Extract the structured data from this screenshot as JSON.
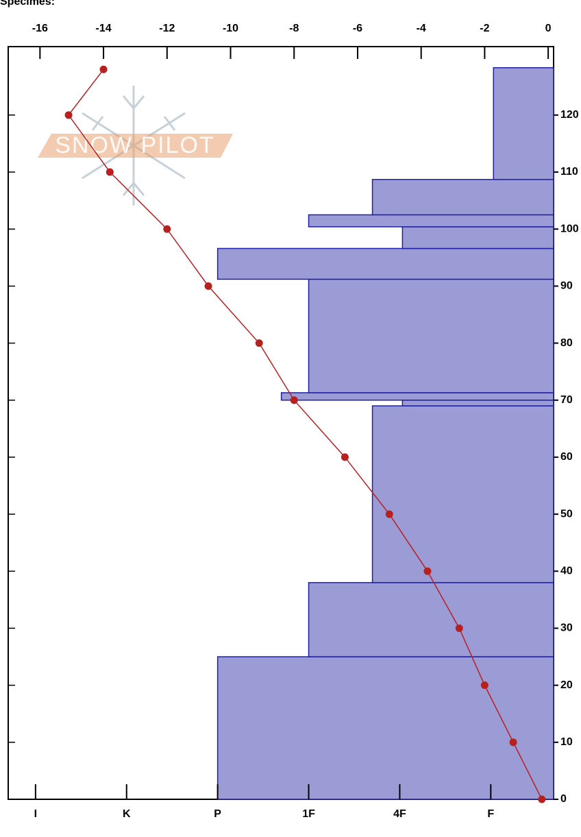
{
  "chart_data": {
    "type": "snow-profile",
    "title": "Specimes:",
    "watermark": "SNOW PILOT",
    "xlim": [
      -17,
      0.17
    ],
    "xticks": [
      -16,
      -14,
      -12,
      -10,
      -8,
      -6,
      -4,
      -2,
      0
    ],
    "ylim": [
      0,
      132
    ],
    "yticks": [
      0,
      10,
      20,
      30,
      40,
      50,
      60,
      70,
      80,
      90,
      100,
      110,
      120
    ],
    "hardness_lim": [
      6.3,
      0.31
    ],
    "hardness_ticks": [
      {
        "value": 6,
        "label": "I"
      },
      {
        "value": 5,
        "label": "K"
      },
      {
        "value": 4,
        "label": "P"
      },
      {
        "value": 3,
        "label": "1F"
      },
      {
        "value": 2,
        "label": "4F"
      },
      {
        "value": 1,
        "label": "F"
      }
    ],
    "layer_color": "#9b9bd6",
    "layer_edge": "#1f1fa3",
    "layers": [
      {
        "bottom": 0,
        "top": 25,
        "hardness": 4
      },
      {
        "bottom": 25,
        "top": 38,
        "hardness": 3
      },
      {
        "bottom": 38,
        "top": 69,
        "hardness": 2.3
      },
      {
        "bottom": 69,
        "top": 70,
        "hardness": 1.97
      },
      {
        "bottom": 70,
        "top": 71.3,
        "hardness": 3.3
      },
      {
        "bottom": 71.3,
        "top": 91.2,
        "hardness": 3
      },
      {
        "bottom": 91.2,
        "top": 96.6,
        "hardness": 4
      },
      {
        "bottom": 96.6,
        "top": 100.4,
        "hardness": 1.97
      },
      {
        "bottom": 100.4,
        "top": 102.5,
        "hardness": 3
      },
      {
        "bottom": 102.5,
        "top": 108.7,
        "hardness": 2.3
      },
      {
        "bottom": 108.7,
        "top": 128.3,
        "hardness": 0.97
      }
    ],
    "temperature": {
      "color": "#b82020",
      "depths": [
        0,
        10,
        20,
        30,
        40,
        50,
        60,
        70,
        80,
        90,
        100,
        110,
        120,
        128
      ],
      "values": [
        -0.2,
        -1.1,
        -2.0,
        -2.8,
        -3.8,
        -5.0,
        -6.4,
        -8.0,
        -9.1,
        -10.7,
        -12.0,
        -13.8,
        -15.1,
        -14.0
      ]
    }
  }
}
